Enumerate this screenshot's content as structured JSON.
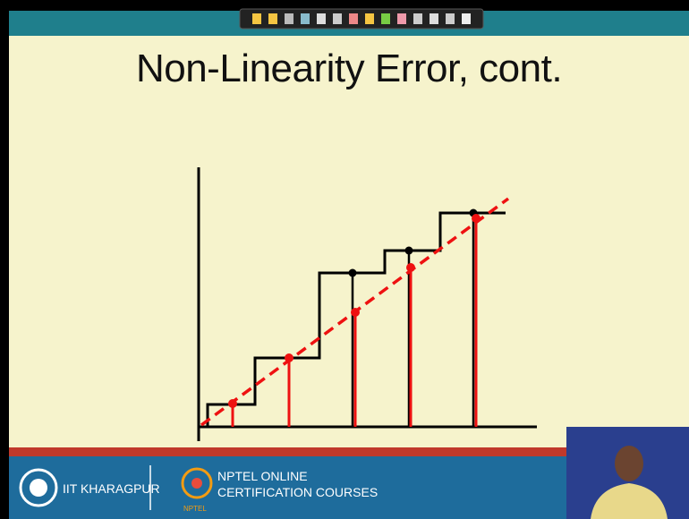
{
  "slide": {
    "title": "Non-Linearity Error, cont."
  },
  "footer": {
    "institute": "IIT KHARAGPUR",
    "program_line1": "NPTEL ONLINE",
    "program_line2": "CERTIFICATION COURSES",
    "logo_caption": "NPTEL"
  }
}
